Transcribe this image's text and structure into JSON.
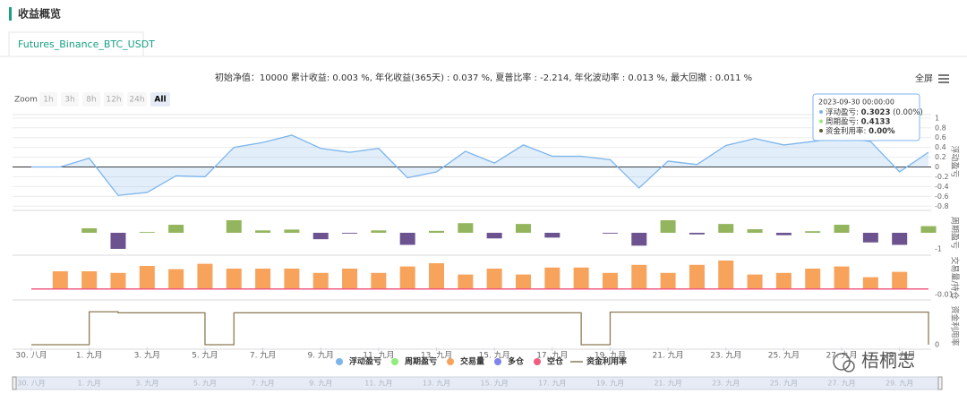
{
  "header": {
    "title": "收益概览"
  },
  "tab": "Futures_Binance_BTC_USDT",
  "summary": "初始净值：10000 累计收益: 0.003 %, 年化收益(365天) : 0.037 %, 夏普比率 : -2.214, 年化波动率 : 0.013 %, 最大回撤 : 0.011 %",
  "fullscreen": "全屏",
  "zoom": {
    "label": "Zoom",
    "buttons": [
      "1h",
      "3h",
      "8h",
      "12h",
      "24h",
      "All"
    ],
    "active": 5
  },
  "tooltip": {
    "title": "2023-09-30 00:00:00",
    "items": [
      {
        "label": "浮动盈亏: ",
        "value": "0.3023",
        "extra": " (0.00%)",
        "color": "#7cb5ec"
      },
      {
        "label": "周期盈亏: ",
        "value": "0.4133",
        "color": "#90ed7d"
      },
      {
        "label": "资金利用率: ",
        "value": "0.00%",
        "color": "#5b5b2c"
      }
    ]
  },
  "watermark": "梧桐志",
  "chart_data": [
    {
      "type": "line",
      "axis_title": "浮动盈亏",
      "ylim": [
        -0.85,
        1.07
      ],
      "yticks": [
        1,
        0.8,
        0.6,
        0.4,
        0.2,
        0,
        -0.2,
        -0.4,
        -0.6,
        -0.8
      ],
      "grid": true,
      "series": [
        {
          "name": "浮动盈亏",
          "color": "#7cb5ec",
          "values": [
            0,
            0,
            0.18,
            -0.58,
            -0.52,
            -0.18,
            -0.2,
            0.4,
            0.5,
            0.65,
            0.38,
            0.3,
            0.38,
            -0.22,
            -0.1,
            0.32,
            0.08,
            0.45,
            0.22,
            0.22,
            0.15,
            -0.43,
            0.12,
            0.05,
            0.44,
            0.58,
            0.45,
            0.52,
            0.6,
            0.52,
            -0.1,
            0.3023
          ]
        }
      ]
    },
    {
      "type": "bar",
      "axis_title": "周期盈亏",
      "ylim": [
        -1.28,
        1.28
      ],
      "yticks": [
        -1
      ],
      "series": [
        {
          "name": "周期盈亏",
          "color": "#90ed7d",
          "bar_color": "#93b55e",
          "negative_color": "#6c5390",
          "values": [
            null,
            null,
            0.28,
            -1.0,
            0.05,
            0.5,
            null,
            0.78,
            0.15,
            0.2,
            -0.4,
            -0.05,
            0.15,
            -0.75,
            0.12,
            0.6,
            -0.35,
            0.55,
            -0.3,
            null,
            -0.05,
            -0.8,
            0.78,
            -0.1,
            0.55,
            0.22,
            -0.15,
            0.1,
            0.5,
            -0.6,
            -0.75,
            0.4133
          ]
        }
      ]
    },
    {
      "type": "bar",
      "axis_title": "交易量/持仓",
      "ylim": [
        -0.017,
        0.058
      ],
      "yticks": [
        -0.01
      ],
      "series": [
        {
          "name": "交易量",
          "color": "#f7a35c",
          "values": [
            null,
            0.033,
            0.033,
            0.03,
            0.043,
            0.037,
            0.047,
            0.038,
            0.038,
            0.038,
            0.03,
            0.038,
            0.03,
            0.042,
            0.048,
            0.027,
            0.038,
            0.027,
            0.04,
            0.04,
            0.03,
            0.045,
            0.03,
            0.045,
            0.053,
            0.027,
            0.03,
            0.038,
            0.042,
            0.022,
            0.032,
            null
          ]
        },
        {
          "name": "多仓",
          "type": "line",
          "color": "#8085e9",
          "values": [
            0,
            0,
            0,
            0,
            0,
            0,
            0,
            0,
            0,
            0,
            0,
            0,
            0,
            0,
            0,
            0,
            0,
            0,
            0,
            0,
            0,
            0,
            0,
            0,
            0,
            0,
            0,
            0,
            0,
            0,
            0,
            0
          ]
        },
        {
          "name": "空仓",
          "type": "line",
          "color": "#f15c80",
          "values": [
            0,
            0,
            0,
            0,
            0,
            0,
            0,
            0,
            0,
            0,
            0,
            0,
            0,
            0,
            0,
            0,
            0,
            0,
            0,
            0,
            0,
            0,
            0,
            0,
            0,
            0,
            0,
            0,
            0,
            0,
            0,
            0
          ]
        }
      ]
    },
    {
      "type": "step",
      "axis_title": "资金利用率",
      "ylim": [
        -0.08,
        1.2
      ],
      "yticks": [
        0
      ],
      "categories": [
        "30. 八月",
        null,
        "1. 九月",
        null,
        "3. 九月",
        null,
        "5. 九月",
        null,
        "7. 九月",
        null,
        "9. 九月",
        null,
        "11. 九月",
        null,
        "13. 九月",
        null,
        "15. 九月",
        null,
        "17. 九月",
        null,
        "19. 九月",
        null,
        "21. 九月",
        null,
        "23. 九月",
        null,
        "25. 九月",
        null,
        "27. 九月",
        null,
        "29. 九月",
        null
      ],
      "series": [
        {
          "name": "资金利用率",
          "color": "#8d7b55",
          "values": [
            0,
            0,
            0.98,
            0.95,
            0.95,
            0.95,
            0,
            0.95,
            0.95,
            0.95,
            0.95,
            0.95,
            0.95,
            0.95,
            0.95,
            0.95,
            0.95,
            0.95,
            0.95,
            0,
            0.97,
            0.97,
            0.97,
            0.97,
            0.97,
            0.97,
            0.97,
            0.97,
            0.97,
            0.97,
            0.97,
            0
          ]
        }
      ]
    }
  ]
}
